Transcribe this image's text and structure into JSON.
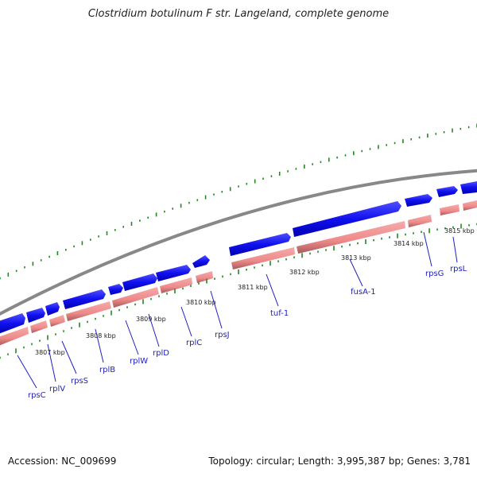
{
  "title": "Clostridium botulinum F str. Langeland, complete genome",
  "footer": {
    "accession": "Accession: NC_009699",
    "summary": "Topology: circular; Length: 3,995,387 bp; Genes: 3,781"
  },
  "colors": {
    "forward_gene": "#1010ee",
    "reverse_gene": "#f08888",
    "backbone": "#888888",
    "gc_tick": "#228822",
    "label": "#2020c0"
  },
  "tick_labels": [
    "3807 kbp",
    "3808 kbp",
    "3809 kbp",
    "3810 kbp",
    "3811 kbp",
    "3812 kbp",
    "3813 kbp",
    "3814 kbp",
    "3815 kbp"
  ],
  "gene_labels": [
    "rpsC",
    "rplV",
    "rpsS",
    "rplB",
    "rplW",
    "rplD",
    "rplC",
    "rpsJ",
    "tuf-1",
    "fusA-1",
    "rpsG",
    "rpsL"
  ]
}
